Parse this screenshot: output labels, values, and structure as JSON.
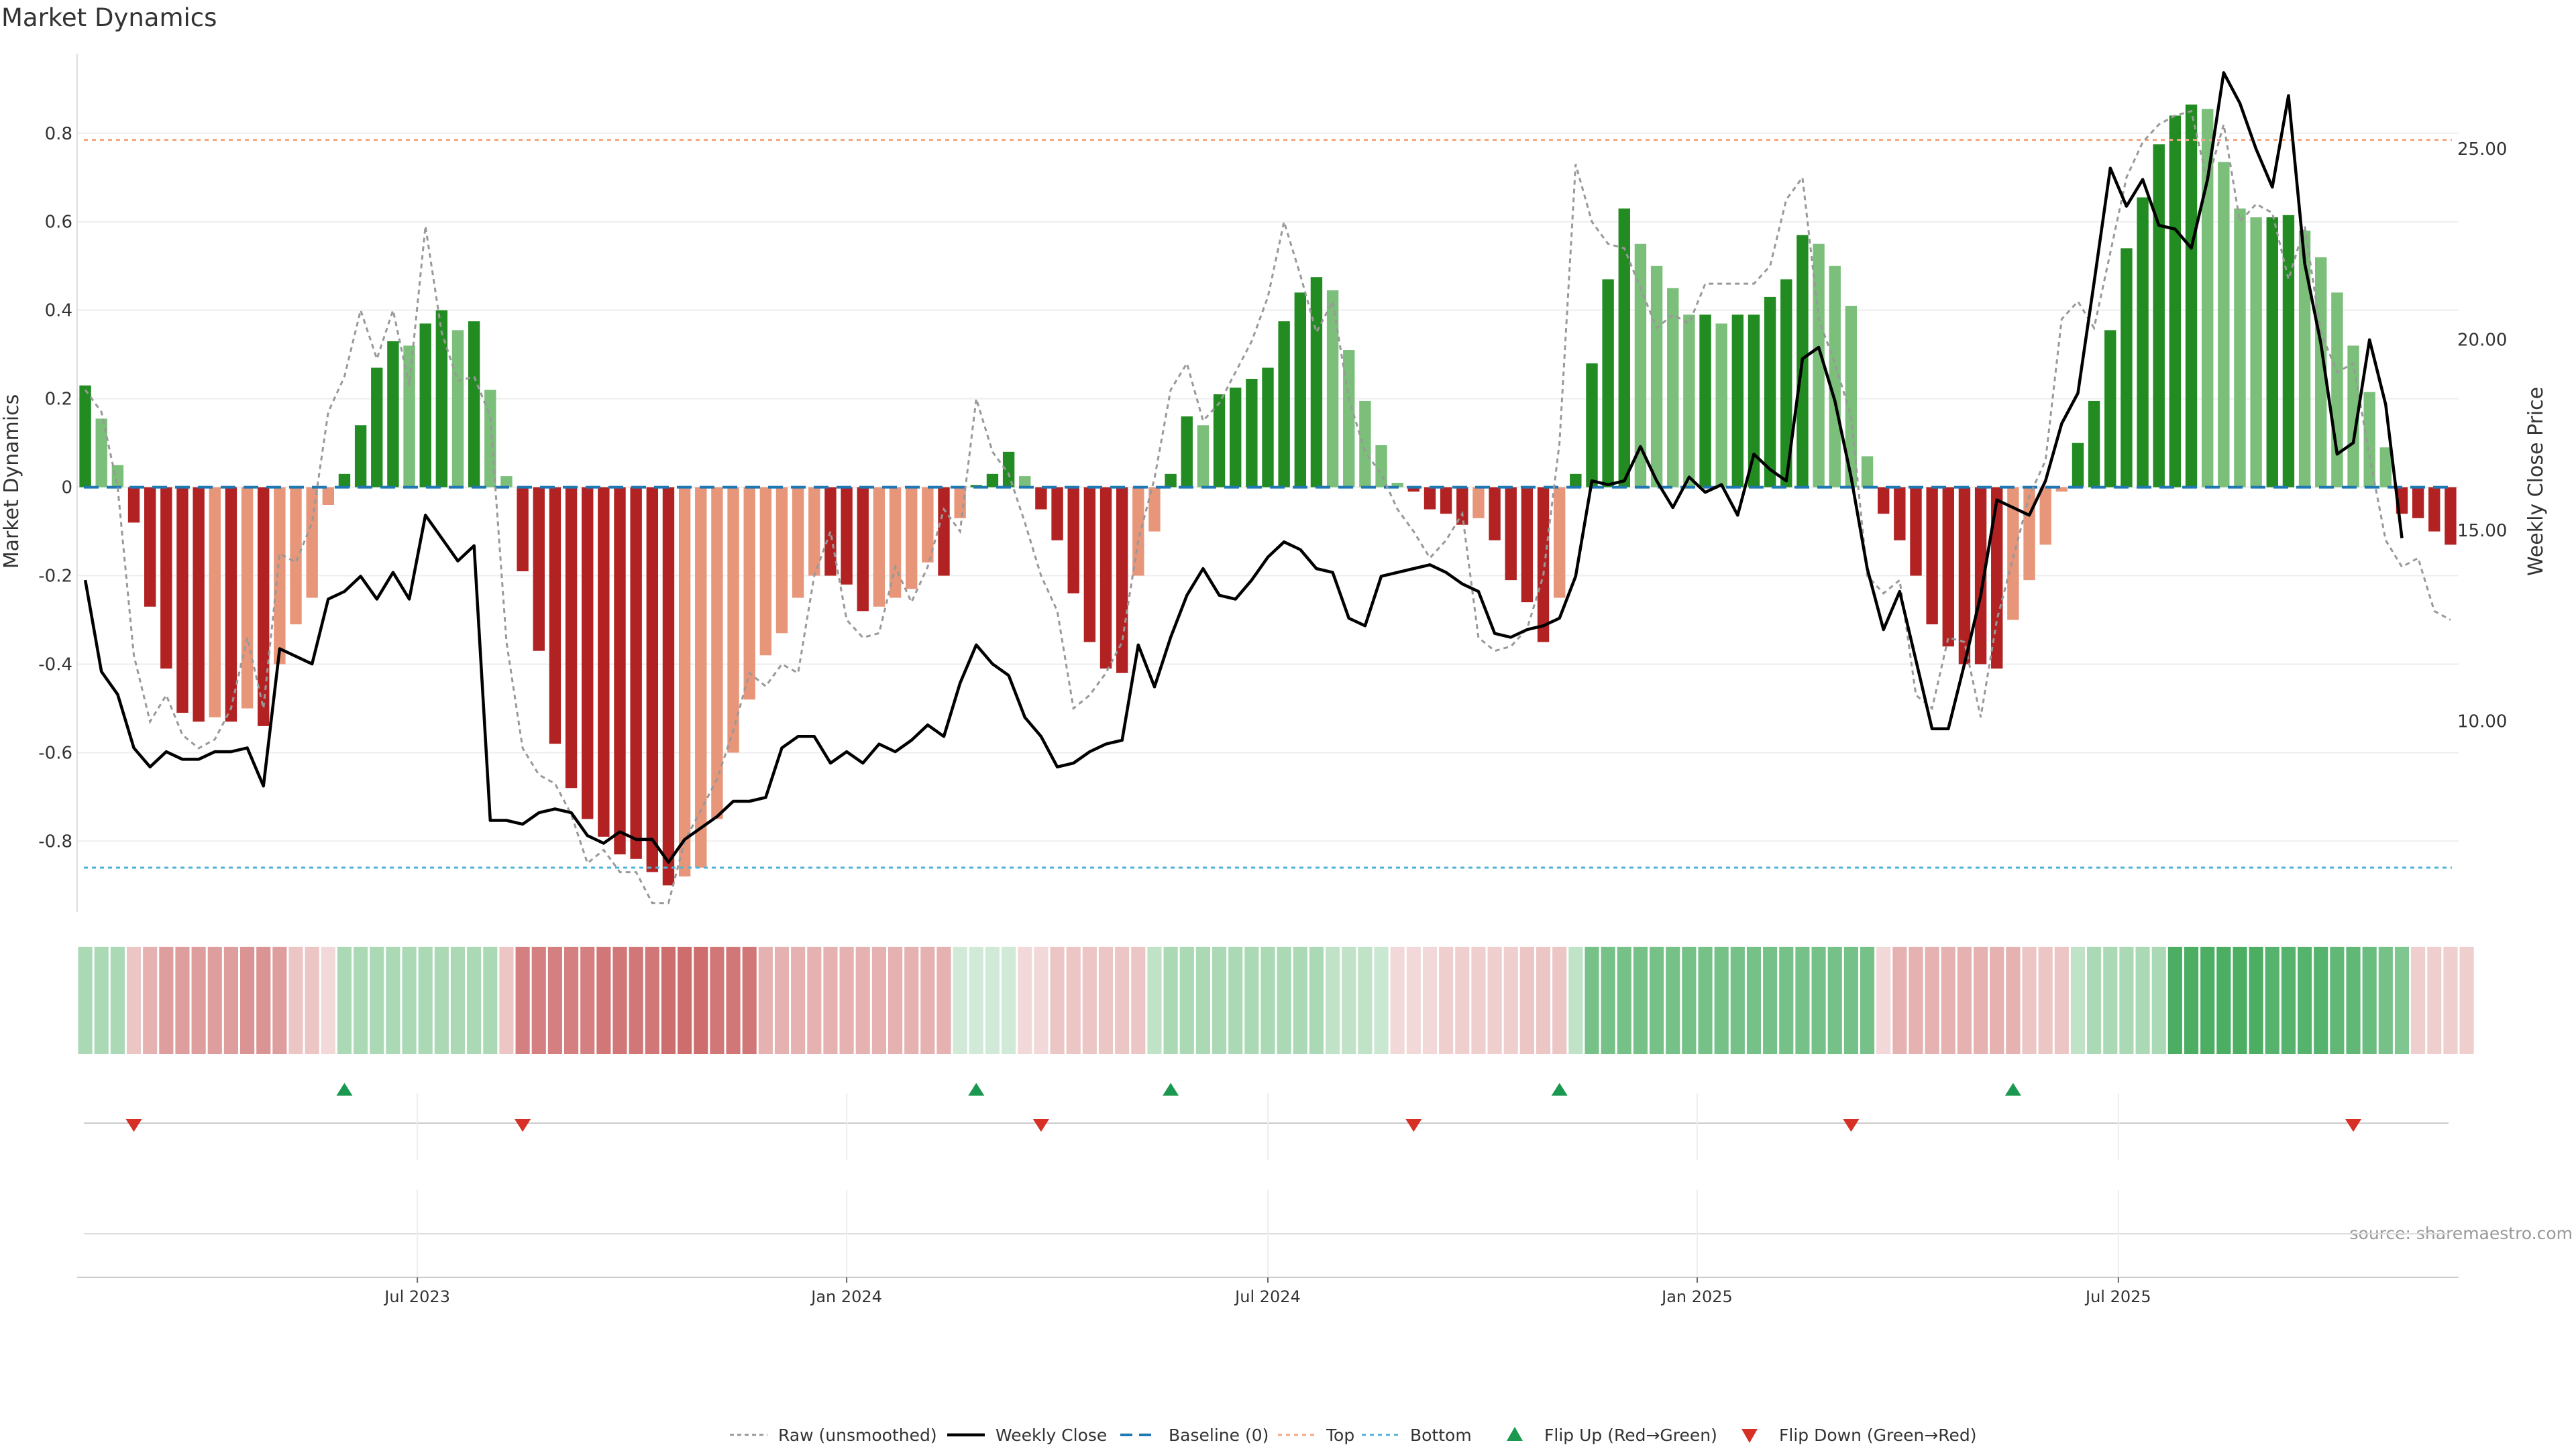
{
  "title": "Market Dynamics",
  "source": "source: sharemaestro.com",
  "colors": {
    "strong_green": "#228b22",
    "light_green": "#7bbf7b",
    "strong_red": "#b22222",
    "light_red": "#e8967a",
    "raw_line": "#999999",
    "close_line": "#000000",
    "baseline": "#1f77b4",
    "top_line": "#f4a582",
    "bottom_line": "#4fb3d9",
    "flip_up": "#1a9850",
    "flip_down": "#d73027"
  },
  "chart_data": {
    "type": "bar",
    "title": "Market Dynamics",
    "ylabel": "Market Dynamics",
    "y2label": "Weekly Close Price",
    "ylim": [
      -0.96,
      0.98
    ],
    "y2lim": [
      5.0,
      27.5
    ],
    "y_ticks": [
      {
        "value": 0.8,
        "label": "0.8"
      },
      {
        "value": 0.6,
        "label": "0.6"
      },
      {
        "value": 0.4,
        "label": "0.4"
      },
      {
        "value": 0.2,
        "label": "0.2"
      },
      {
        "value": 0,
        "label": "0"
      },
      {
        "value": -0.2,
        "label": "-0.2"
      },
      {
        "value": -0.4,
        "label": "-0.4"
      },
      {
        "value": -0.6,
        "label": "-0.6"
      },
      {
        "value": -0.8,
        "label": "-0.8"
      }
    ],
    "y2_ticks": [
      {
        "value": 25,
        "label": "25.00"
      },
      {
        "value": 20,
        "label": "20.00"
      },
      {
        "value": 15,
        "label": "15.00"
      },
      {
        "value": 10,
        "label": "10.00"
      }
    ],
    "x_ticks": [
      {
        "index": 20.5,
        "label": "Jul 2023"
      },
      {
        "index": 47,
        "label": "Jan 2024"
      },
      {
        "index": 73,
        "label": "Jul 2024"
      },
      {
        "index": 99.5,
        "label": "Jan 2025"
      },
      {
        "index": 125.5,
        "label": "Jul 2025"
      }
    ],
    "top_level": 0.785,
    "bottom_level": -0.86,
    "baseline": 0,
    "dynamics": [
      0.23,
      0.155,
      0.05,
      -0.08,
      -0.27,
      -0.41,
      -0.51,
      -0.53,
      -0.52,
      -0.53,
      -0.5,
      -0.54,
      -0.4,
      -0.31,
      -0.25,
      -0.04,
      0.03,
      0.14,
      0.27,
      0.33,
      0.32,
      0.37,
      0.4,
      0.355,
      0.375,
      0.22,
      0.025,
      -0.19,
      -0.37,
      -0.58,
      -0.68,
      -0.75,
      -0.79,
      -0.83,
      -0.84,
      -0.87,
      -0.9,
      -0.88,
      -0.86,
      -0.75,
      -0.6,
      -0.48,
      -0.38,
      -0.33,
      -0.25,
      -0.2,
      -0.2,
      -0.22,
      -0.28,
      -0.27,
      -0.25,
      -0.23,
      -0.17,
      -0.2,
      -0.07,
      0.005,
      0.03,
      0.08,
      0.025,
      -0.05,
      -0.12,
      -0.24,
      -0.35,
      -0.41,
      -0.42,
      -0.2,
      -0.1,
      0.03,
      0.16,
      0.14,
      0.21,
      0.225,
      0.245,
      0.27,
      0.375,
      0.44,
      0.475,
      0.445,
      0.31,
      0.195,
      0.095,
      0.01,
      -0.01,
      -0.05,
      -0.06,
      -0.085,
      -0.07,
      -0.12,
      -0.21,
      -0.26,
      -0.35,
      -0.25,
      0.03,
      0.28,
      0.47,
      0.63,
      0.55,
      0.5,
      0.45,
      0.39,
      0.39,
      0.37,
      0.39,
      0.39,
      0.43,
      0.47,
      0.57,
      0.55,
      0.5,
      0.41,
      0.07,
      -0.06,
      -0.12,
      -0.2,
      -0.31,
      -0.36,
      -0.4,
      -0.4,
      -0.41,
      -0.3,
      -0.21,
      -0.13,
      -0.01,
      0.1,
      0.195,
      0.355,
      0.54,
      0.655,
      0.775,
      0.84,
      0.865,
      0.855,
      0.735,
      0.63,
      0.61,
      0.61,
      0.615,
      0.58,
      0.52,
      0.44,
      0.32,
      0.215,
      0.09,
      -0.06,
      -0.07,
      -0.1,
      -0.13
    ],
    "raw": [
      0.22,
      0.17,
      0.0,
      -0.38,
      -0.53,
      -0.47,
      -0.56,
      -0.59,
      -0.57,
      -0.5,
      -0.34,
      -0.5,
      -0.15,
      -0.17,
      -0.08,
      0.17,
      0.25,
      0.4,
      0.29,
      0.4,
      0.23,
      0.59,
      0.35,
      0.24,
      0.25,
      0.16,
      -0.35,
      -0.59,
      -0.65,
      -0.67,
      -0.74,
      -0.85,
      -0.82,
      -0.87,
      -0.87,
      -0.94,
      -0.94,
      -0.8,
      -0.73,
      -0.66,
      -0.55,
      -0.42,
      -0.45,
      -0.4,
      -0.42,
      -0.2,
      -0.1,
      -0.3,
      -0.34,
      -0.33,
      -0.18,
      -0.26,
      -0.18,
      -0.05,
      -0.1,
      0.2,
      0.08,
      0.03,
      -0.08,
      -0.2,
      -0.28,
      -0.5,
      -0.47,
      -0.42,
      -0.35,
      -0.12,
      0.02,
      0.22,
      0.28,
      0.15,
      0.19,
      0.26,
      0.33,
      0.43,
      0.6,
      0.48,
      0.35,
      0.42,
      0.2,
      0.08,
      0.03,
      -0.05,
      -0.1,
      -0.16,
      -0.12,
      -0.06,
      -0.34,
      -0.37,
      -0.36,
      -0.32,
      -0.2,
      0.1,
      0.73,
      0.6,
      0.55,
      0.54,
      0.45,
      0.36,
      0.39,
      0.37,
      0.46,
      0.46,
      0.46,
      0.46,
      0.5,
      0.65,
      0.7,
      0.38,
      0.28,
      0.16,
      -0.2,
      -0.24,
      -0.21,
      -0.47,
      -0.5,
      -0.34,
      -0.35,
      -0.52,
      -0.3,
      -0.16,
      -0.02,
      0.06,
      0.38,
      0.42,
      0.36,
      0.53,
      0.7,
      0.78,
      0.82,
      0.84,
      0.85,
      0.69,
      0.82,
      0.6,
      0.64,
      0.62,
      0.47,
      0.59,
      0.35,
      0.26,
      0.28,
      0.07,
      -0.12,
      -0.18,
      -0.16,
      -0.28,
      -0.3
    ],
    "close": [
      13.7,
      11.3,
      10.7,
      9.3,
      8.8,
      9.2,
      9.0,
      9.0,
      9.2,
      9.2,
      9.3,
      8.3,
      11.9,
      11.7,
      11.5,
      13.2,
      13.4,
      13.8,
      13.2,
      13.9,
      13.2,
      15.4,
      14.8,
      14.2,
      14.6,
      7.4,
      7.4,
      7.3,
      7.6,
      7.7,
      7.6,
      7.0,
      6.8,
      7.1,
      6.9,
      6.9,
      6.3,
      6.9,
      7.2,
      7.5,
      7.9,
      7.9,
      8.0,
      9.3,
      9.6,
      9.6,
      8.9,
      9.2,
      8.9,
      9.4,
      9.2,
      9.5,
      9.9,
      9.6,
      11.0,
      12.0,
      11.5,
      11.2,
      10.1,
      9.6,
      8.8,
      8.9,
      9.2,
      9.4,
      9.5,
      12.0,
      10.9,
      12.2,
      13.3,
      14.0,
      13.3,
      13.2,
      13.7,
      14.3,
      14.7,
      14.5,
      14.0,
      13.9,
      12.7,
      12.5,
      13.8,
      13.9,
      14.0,
      14.1,
      13.9,
      13.6,
      13.4,
      12.3,
      12.2,
      12.4,
      12.5,
      12.7,
      13.8,
      16.3,
      16.2,
      16.3,
      17.2,
      16.3,
      15.6,
      16.4,
      16.0,
      16.2,
      15.4,
      17.0,
      16.6,
      16.3,
      19.5,
      19.8,
      18.4,
      16.4,
      14.0,
      12.4,
      13.4,
      11.6,
      9.8,
      9.8,
      11.5,
      13.3,
      15.8,
      15.6,
      15.4,
      16.3,
      17.8,
      18.6,
      21.5,
      24.5,
      23.5,
      24.2,
      23.0,
      22.9,
      22.4,
      24.2,
      27.0,
      26.2,
      25.0,
      24.0,
      26.4,
      22.0,
      19.9,
      17.0,
      17.3,
      20.0,
      18.3,
      14.8
    ],
    "heat": [
      0.4,
      0.4,
      0.4,
      -0.3,
      -0.4,
      -0.5,
      -0.5,
      -0.5,
      -0.5,
      -0.5,
      -0.55,
      -0.55,
      -0.5,
      -0.3,
      -0.3,
      -0.2,
      0.4,
      0.4,
      0.4,
      0.4,
      0.4,
      0.4,
      0.4,
      0.4,
      0.4,
      0.4,
      -0.3,
      -0.65,
      -0.65,
      -0.65,
      -0.65,
      -0.65,
      -0.7,
      -0.7,
      -0.7,
      -0.7,
      -0.75,
      -0.75,
      -0.75,
      -0.7,
      -0.7,
      -0.7,
      -0.4,
      -0.4,
      -0.4,
      -0.4,
      -0.4,
      -0.4,
      -0.4,
      -0.4,
      -0.4,
      -0.4,
      -0.4,
      -0.4,
      0.22,
      0.22,
      0.22,
      0.22,
      -0.2,
      -0.2,
      -0.3,
      -0.3,
      -0.3,
      -0.3,
      -0.3,
      -0.3,
      0.3,
      0.4,
      0.4,
      0.4,
      0.4,
      0.4,
      0.4,
      0.4,
      0.4,
      0.4,
      0.4,
      0.3,
      0.3,
      0.3,
      0.25,
      -0.2,
      -0.2,
      -0.2,
      -0.25,
      -0.25,
      -0.25,
      -0.25,
      -0.25,
      -0.3,
      -0.3,
      -0.3,
      0.3,
      0.65,
      0.65,
      0.65,
      0.65,
      0.65,
      0.65,
      0.65,
      0.65,
      0.65,
      0.65,
      0.65,
      0.65,
      0.65,
      0.65,
      0.65,
      0.65,
      0.65,
      0.65,
      -0.2,
      -0.4,
      -0.4,
      -0.4,
      -0.4,
      -0.4,
      -0.4,
      -0.4,
      -0.4,
      -0.3,
      -0.3,
      -0.3,
      0.3,
      0.4,
      0.4,
      0.4,
      0.4,
      0.4,
      0.85,
      0.85,
      0.85,
      0.85,
      0.85,
      0.85,
      0.8,
      0.8,
      0.8,
      0.8,
      0.75,
      0.75,
      0.7,
      0.65,
      0.6,
      -0.25,
      -0.25,
      -0.25,
      -0.25
    ],
    "flip_up_idx": [
      16,
      55,
      67,
      91,
      119
    ],
    "flip_down_idx": [
      3,
      27,
      59,
      82,
      109,
      140
    ],
    "legend": [
      {
        "key": "raw",
        "label": "Raw (unsmoothed)"
      },
      {
        "key": "close",
        "label": "Weekly Close"
      },
      {
        "key": "baseline",
        "label": "Baseline (0)"
      },
      {
        "key": "top",
        "label": "Top"
      },
      {
        "key": "bottom",
        "label": "Bottom"
      },
      {
        "key": "flip_up",
        "label": "Flip Up (Red→Green)"
      },
      {
        "key": "flip_down",
        "label": "Flip Down (Green→Red)"
      }
    ]
  }
}
